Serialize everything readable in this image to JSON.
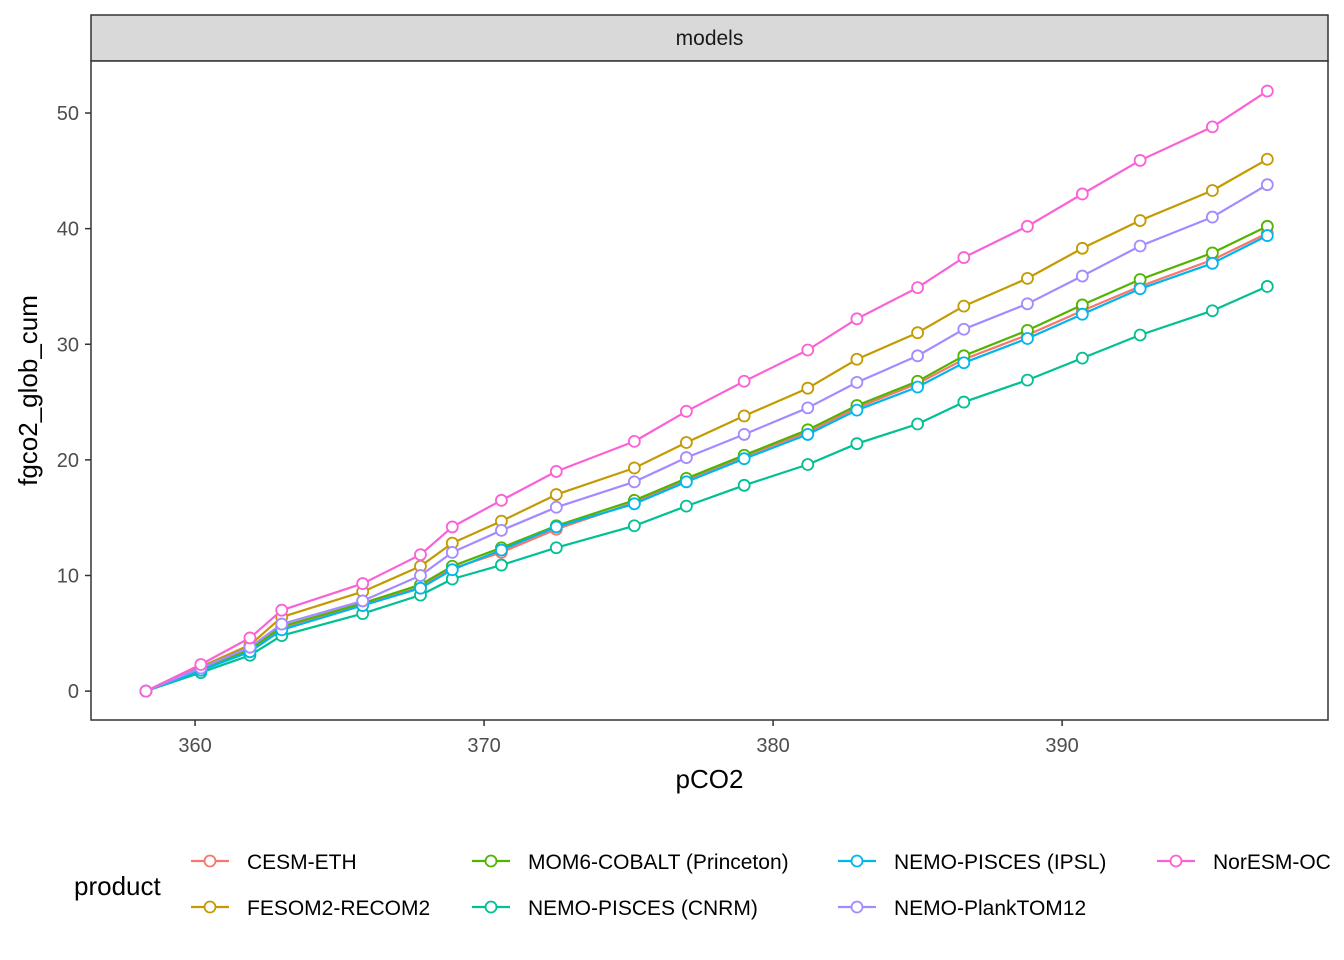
{
  "chart_data": {
    "type": "line",
    "facet_label": "models",
    "xlabel": "pCO2",
    "ylabel": "fgco2_glob_cum",
    "xlim": [
      356.4,
      399.2
    ],
    "ylim": [
      -2.5,
      54.5
    ],
    "x_ticks": [
      360,
      370,
      380,
      390
    ],
    "y_ticks": [
      0,
      10,
      20,
      30,
      40,
      50
    ],
    "grid": false,
    "legend": {
      "title": "product",
      "position": "bottom"
    },
    "x": [
      358.3,
      360.2,
      361.9,
      363.0,
      365.8,
      367.8,
      368.9,
      370.6,
      372.5,
      375.2,
      377.0,
      379.0,
      381.2,
      382.9,
      385.0,
      386.6,
      388.8,
      390.7,
      392.7,
      395.2,
      397.1
    ],
    "series": [
      {
        "name": "CESM-ETH",
        "color": "#F8766D",
        "values": [
          0,
          1.9,
          3.5,
          5.4,
          7.5,
          9.0,
          10.6,
          12.0,
          14.0,
          16.3,
          18.3,
          20.3,
          22.4,
          24.5,
          26.6,
          28.7,
          30.8,
          32.9,
          35.0,
          37.3,
          39.6
        ]
      },
      {
        "name": "FESOM2-RECOM2",
        "color": "#C49A00",
        "values": [
          0,
          2.1,
          4.0,
          6.4,
          8.6,
          10.8,
          12.8,
          14.7,
          17.0,
          19.3,
          21.5,
          23.8,
          26.2,
          28.7,
          31.0,
          33.3,
          35.7,
          38.3,
          40.7,
          43.3,
          46.0
        ]
      },
      {
        "name": "MOM6-COBALT (Princeton)",
        "color": "#53B400",
        "values": [
          0,
          1.9,
          3.6,
          5.6,
          7.6,
          9.2,
          10.8,
          12.4,
          14.3,
          16.5,
          18.4,
          20.4,
          22.6,
          24.7,
          26.8,
          29.0,
          31.2,
          33.4,
          35.6,
          37.9,
          40.2
        ]
      },
      {
        "name": "NEMO-PISCES (CNRM)",
        "color": "#00C094",
        "values": [
          0,
          1.6,
          3.1,
          4.8,
          6.7,
          8.3,
          9.7,
          10.9,
          12.4,
          14.3,
          16.0,
          17.8,
          19.6,
          21.4,
          23.1,
          25.0,
          26.9,
          28.8,
          30.8,
          32.9,
          35.0
        ]
      },
      {
        "name": "NEMO-PISCES (IPSL)",
        "color": "#00B6EB",
        "values": [
          0,
          1.8,
          3.4,
          5.3,
          7.4,
          8.9,
          10.5,
          12.2,
          14.2,
          16.2,
          18.1,
          20.1,
          22.2,
          24.3,
          26.3,
          28.4,
          30.5,
          32.6,
          34.8,
          37.0,
          39.4
        ]
      },
      {
        "name": "NEMO-PlankTOM12",
        "color": "#A58AFF",
        "values": [
          0,
          2.0,
          3.8,
          5.8,
          7.8,
          10.0,
          12.0,
          13.9,
          15.9,
          18.1,
          20.2,
          22.2,
          24.5,
          26.7,
          29.0,
          31.3,
          33.5,
          35.9,
          38.5,
          41.0,
          43.8
        ]
      },
      {
        "name": "NorESM-OC",
        "color": "#FB61D7",
        "values": [
          0,
          2.3,
          4.6,
          7.0,
          9.3,
          11.8,
          14.2,
          16.5,
          19.0,
          21.6,
          24.2,
          26.8,
          29.5,
          32.2,
          34.9,
          37.5,
          40.2,
          43.0,
          45.9,
          48.8,
          51.9
        ]
      }
    ],
    "legend_labels": [
      "CESM-ETH",
      "FESOM2-RECOM2",
      "MOM6-COBALT (Princeton)",
      "NEMO-PISCES (CNRM)",
      "NEMO-PISCES (IPSL)",
      "NEMO-PlankTOM12",
      "NorESM-OC"
    ]
  }
}
